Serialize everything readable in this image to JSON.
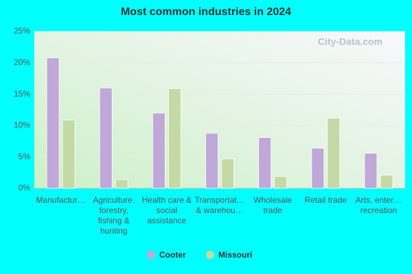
{
  "chart_data": {
    "type": "bar",
    "title": "Most common industries in 2024",
    "categories": [
      "Manufactur…",
      "Agriculture, forestry, fishing & hunting",
      "Health care & social assistance",
      "Transportat… & warehou…",
      "Wholesale trade",
      "Retail trade",
      "Arts, enter… recreation"
    ],
    "series": [
      {
        "name": "Cooter",
        "color": "#c0a8d8",
        "values": [
          20.8,
          16.0,
          12.0,
          8.8,
          8.1,
          6.4,
          5.6
        ]
      },
      {
        "name": "Missouri",
        "color": "#c5d9a6",
        "values": [
          10.9,
          1.4,
          15.9,
          4.7,
          1.9,
          11.2,
          2.1
        ]
      }
    ],
    "ylim": [
      0,
      25
    ],
    "yticks": [
      {
        "value": 0,
        "label": "0%"
      },
      {
        "value": 5,
        "label": "5%"
      },
      {
        "value": 10,
        "label": "10%"
      },
      {
        "value": 15,
        "label": "15%"
      },
      {
        "value": 20,
        "label": "20%"
      },
      {
        "value": 25,
        "label": "25%"
      }
    ],
    "grid": true,
    "watermark": "City-Data.com"
  }
}
